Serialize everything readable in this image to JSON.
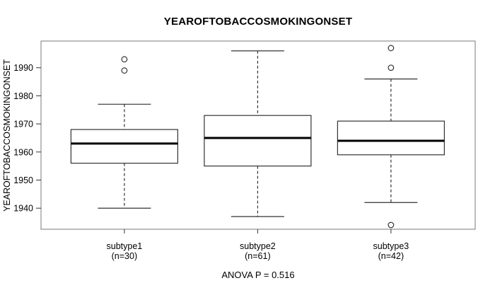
{
  "chart_data": {
    "type": "boxplot",
    "title": "YEAROFTOBACCOSMOKINGONSET",
    "ylabel": "YEAROFTOBACCOSMOKINGONSET",
    "xlabel": "",
    "annotation": "ANOVA P = 0.516",
    "ylim": [
      1932.5,
      1999.5
    ],
    "yticks": [
      1940,
      1950,
      1960,
      1970,
      1980,
      1990
    ],
    "grid": false,
    "legend": "none",
    "groups": [
      {
        "label": "subtype1",
        "n_label": "(n=30)",
        "n": 30,
        "lower_whisker": 1940,
        "q1": 1956,
        "median": 1963,
        "q3": 1968,
        "upper_whisker": 1977,
        "outliers": [
          1989,
          1993
        ]
      },
      {
        "label": "subtype2",
        "n_label": "(n=61)",
        "n": 61,
        "lower_whisker": 1937,
        "q1": 1955,
        "median": 1965,
        "q3": 1973,
        "upper_whisker": 1996,
        "outliers": []
      },
      {
        "label": "subtype3",
        "n_label": "(n=42)",
        "n": 42,
        "lower_whisker": 1942,
        "q1": 1959,
        "median": 1964,
        "q3": 1971,
        "upper_whisker": 1986,
        "outliers": [
          1934,
          1990,
          1997
        ]
      }
    ],
    "colors": {
      "frame": "#7a7a7a",
      "line": "#333333",
      "median": "#000000",
      "box_fill": "#ffffff",
      "background": "#ffffff",
      "text": "#000000"
    }
  }
}
